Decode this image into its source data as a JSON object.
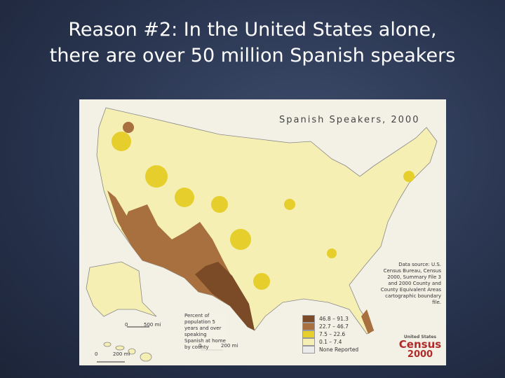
{
  "slide": {
    "title": "Reason #2: In the United States alone, there are over 50 million Spanish speakers"
  },
  "map": {
    "title": "Spanish Speakers, 2000",
    "legend": {
      "title": "Percent of population 5 years and over speaking Spanish at home by county",
      "items": [
        {
          "label": "46.8 – 91.3",
          "color": "#7b4a26"
        },
        {
          "label": "22.7 – 46.7",
          "color": "#a8703e"
        },
        {
          "label": "7.5 – 22.6",
          "color": "#e6cf2c"
        },
        {
          "label": "0.1 – 7.4",
          "color": "#f6efb4"
        },
        {
          "label": "None Reported",
          "color": "#ebebeb"
        }
      ]
    },
    "source": "Data source: U.S. Census Bureau, Census 2000, Summary File 3 and 2000 County and County Equivalent Areas cartographic boundary file.",
    "scales": {
      "alaska": [
        "0",
        "500 mi"
      ],
      "hawaii": [
        "0",
        "200 mi"
      ],
      "main": [
        "0",
        "200 mi"
      ]
    },
    "logo": {
      "top": "United States",
      "word": "Census",
      "year": "2000"
    }
  }
}
